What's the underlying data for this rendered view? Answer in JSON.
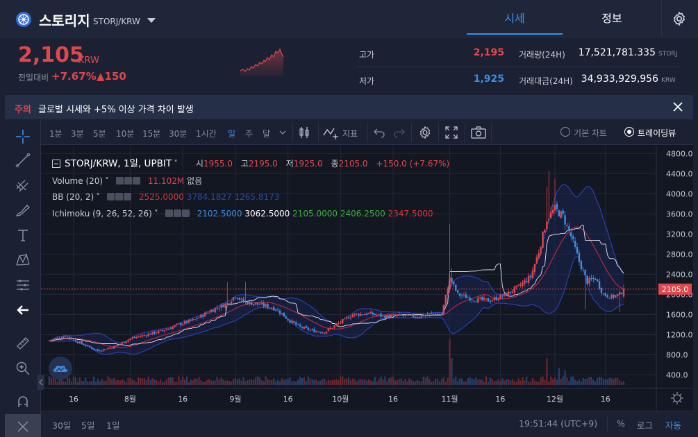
{
  "header": {
    "coin_name": "스토리지",
    "pair": "STORJ/KRW",
    "tabs": [
      "시세",
      "정보"
    ]
  },
  "summary": {
    "price": "2,105",
    "price_unit": "KRW",
    "change_label": "전일대비",
    "change_pct": "+7.67%",
    "change_abs": "▲150",
    "high_label": "고가",
    "high": "2,195",
    "low_label": "저가",
    "low": "1,925",
    "volume_label": "거래량(24H)",
    "volume": "17,521,781.335",
    "volume_unit": "STORJ",
    "amount_label": "거래대금(24H)",
    "amount": "34,933,929,956",
    "amount_unit": "KRW"
  },
  "notice": {
    "tag": "주의",
    "text": "글로벌 시세와 +5% 이상 가격 차이 발생"
  },
  "toolbar": {
    "timeframes": [
      "1분",
      "3분",
      "5분",
      "10분",
      "15분",
      "30분",
      "1시간",
      "일",
      "주",
      "달"
    ],
    "active_timeframe": "일",
    "indicator_label": "지표",
    "chart_basic": "기본 차트",
    "chart_tv": "트레이딩뷰"
  },
  "legend": {
    "title": "STORJ/KRW, 1일, UPBIT",
    "o_label": "시",
    "o": "1955.0",
    "h_label": "고",
    "h": "2195.0",
    "l_label": "저",
    "l": "1925.0",
    "c_label": "종",
    "c": "2105.0",
    "chg": "+150.0 (+7.67%)",
    "vol_name": "Volume (20)",
    "vol_val": "11.102M",
    "vol_ma": "없음",
    "bb_name": "BB (20, 2)",
    "bb_mid": "2525.0000",
    "bb_up": "3784.1827",
    "bb_lo": "1265.8173",
    "ich_name": "Ichimoku (9, 26, 52, 26)",
    "ich_1": "2102.5000",
    "ich_2": "3062.5000",
    "ich_3": "2105.0000",
    "ich_4": "2406.2500",
    "ich_5": "2347.5000"
  },
  "bottom": {
    "ranges": [
      "30일",
      "5일",
      "1일"
    ],
    "time": "19:51:44 (UTC+9)",
    "pct": "%",
    "log": "로그",
    "auto": "자동"
  },
  "colors": {
    "up": "#e0474c",
    "down": "#3a8ee6",
    "bg": "#131722"
  },
  "chart_data": {
    "type": "candlestick",
    "y_ticks": [
      400,
      800,
      1200,
      1600,
      2000,
      2400,
      2800,
      3200,
      3600,
      4000,
      4400,
      4800
    ],
    "ylim": [
      200,
      4900
    ],
    "x_ticks": [
      "16",
      "8월",
      "16",
      "9월",
      "16",
      "10월",
      "16",
      "11월",
      "16",
      "12월",
      "16"
    ],
    "last_price_label": "2105.0",
    "last_price": 2105,
    "anchors": [
      [
        0,
        1080
      ],
      [
        8,
        1180
      ],
      [
        16,
        1020
      ],
      [
        24,
        880
      ],
      [
        32,
        960
      ],
      [
        40,
        1120
      ],
      [
        48,
        1200
      ],
      [
        56,
        1280
      ],
      [
        64,
        1400
      ],
      [
        72,
        1500
      ],
      [
        80,
        1680
      ],
      [
        88,
        1820
      ],
      [
        92,
        1980
      ],
      [
        96,
        1850
      ],
      [
        104,
        1800
      ],
      [
        112,
        1720
      ],
      [
        118,
        1500
      ],
      [
        124,
        1350
      ],
      [
        130,
        1280
      ],
      [
        136,
        1250
      ],
      [
        142,
        1400
      ],
      [
        150,
        1600
      ],
      [
        158,
        1620
      ],
      [
        166,
        1560
      ],
      [
        174,
        1580
      ],
      [
        182,
        1560
      ],
      [
        190,
        1620
      ],
      [
        194,
        1600
      ],
      [
        198,
        2320
      ],
      [
        202,
        2000
      ],
      [
        210,
        1900
      ],
      [
        218,
        1880
      ],
      [
        226,
        2000
      ],
      [
        232,
        2150
      ],
      [
        238,
        2350
      ],
      [
        242,
        2850
      ],
      [
        246,
        3500
      ],
      [
        250,
        3700
      ],
      [
        254,
        3550
      ],
      [
        258,
        3150
      ],
      [
        262,
        2650
      ],
      [
        266,
        2250
      ],
      [
        270,
        2320
      ],
      [
        274,
        2000
      ],
      [
        278,
        1950
      ],
      [
        282,
        2000
      ],
      [
        284,
        2105
      ]
    ],
    "spikes": [
      [
        88,
        2250
      ],
      [
        97,
        2250
      ],
      [
        198,
        3400
      ],
      [
        199,
        2520
      ],
      [
        246,
        4150
      ],
      [
        247,
        4450
      ],
      [
        250,
        4300
      ],
      [
        265,
        1700
      ],
      [
        282,
        1650
      ]
    ],
    "volume_spikes": [
      [
        198,
        0.95
      ],
      [
        199,
        0.55
      ],
      [
        246,
        0.55
      ],
      [
        252,
        0.35
      ],
      [
        255,
        0.3
      ]
    ]
  }
}
